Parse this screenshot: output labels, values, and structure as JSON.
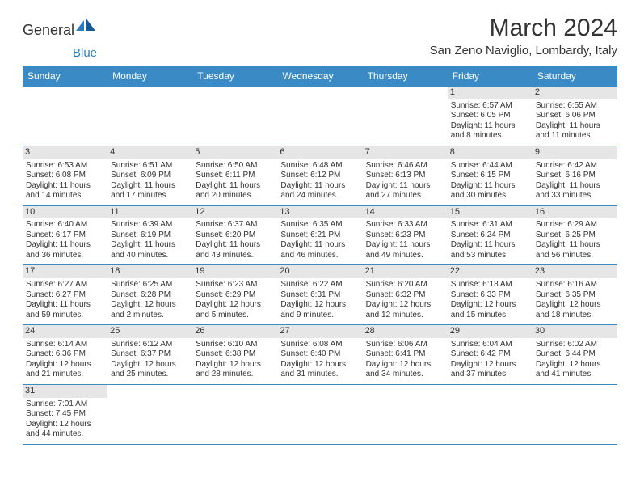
{
  "brand": {
    "name_part1": "General",
    "name_part2": "Blue"
  },
  "title": {
    "month": "March 2024",
    "location": "San Zeno Naviglio, Lombardy, Italy"
  },
  "colors": {
    "header_bg": "#3a8ac6",
    "rule": "#3a8ac6",
    "dayband": "#e6e6e6",
    "brand_blue": "#2b7bbf"
  },
  "weekdays": [
    "Sunday",
    "Monday",
    "Tuesday",
    "Wednesday",
    "Thursday",
    "Friday",
    "Saturday"
  ],
  "grid": {
    "rows": 6,
    "cols": 7,
    "first_weekday_index": 5,
    "days": [
      {
        "d": 1,
        "sunrise": "6:57 AM",
        "sunset": "6:05 PM",
        "daylight": "11 hours and 8 minutes."
      },
      {
        "d": 2,
        "sunrise": "6:55 AM",
        "sunset": "6:06 PM",
        "daylight": "11 hours and 11 minutes."
      },
      {
        "d": 3,
        "sunrise": "6:53 AM",
        "sunset": "6:08 PM",
        "daylight": "11 hours and 14 minutes."
      },
      {
        "d": 4,
        "sunrise": "6:51 AM",
        "sunset": "6:09 PM",
        "daylight": "11 hours and 17 minutes."
      },
      {
        "d": 5,
        "sunrise": "6:50 AM",
        "sunset": "6:11 PM",
        "daylight": "11 hours and 20 minutes."
      },
      {
        "d": 6,
        "sunrise": "6:48 AM",
        "sunset": "6:12 PM",
        "daylight": "11 hours and 24 minutes."
      },
      {
        "d": 7,
        "sunrise": "6:46 AM",
        "sunset": "6:13 PM",
        "daylight": "11 hours and 27 minutes."
      },
      {
        "d": 8,
        "sunrise": "6:44 AM",
        "sunset": "6:15 PM",
        "daylight": "11 hours and 30 minutes."
      },
      {
        "d": 9,
        "sunrise": "6:42 AM",
        "sunset": "6:16 PM",
        "daylight": "11 hours and 33 minutes."
      },
      {
        "d": 10,
        "sunrise": "6:40 AM",
        "sunset": "6:17 PM",
        "daylight": "11 hours and 36 minutes."
      },
      {
        "d": 11,
        "sunrise": "6:39 AM",
        "sunset": "6:19 PM",
        "daylight": "11 hours and 40 minutes."
      },
      {
        "d": 12,
        "sunrise": "6:37 AM",
        "sunset": "6:20 PM",
        "daylight": "11 hours and 43 minutes."
      },
      {
        "d": 13,
        "sunrise": "6:35 AM",
        "sunset": "6:21 PM",
        "daylight": "11 hours and 46 minutes."
      },
      {
        "d": 14,
        "sunrise": "6:33 AM",
        "sunset": "6:23 PM",
        "daylight": "11 hours and 49 minutes."
      },
      {
        "d": 15,
        "sunrise": "6:31 AM",
        "sunset": "6:24 PM",
        "daylight": "11 hours and 53 minutes."
      },
      {
        "d": 16,
        "sunrise": "6:29 AM",
        "sunset": "6:25 PM",
        "daylight": "11 hours and 56 minutes."
      },
      {
        "d": 17,
        "sunrise": "6:27 AM",
        "sunset": "6:27 PM",
        "daylight": "11 hours and 59 minutes."
      },
      {
        "d": 18,
        "sunrise": "6:25 AM",
        "sunset": "6:28 PM",
        "daylight": "12 hours and 2 minutes."
      },
      {
        "d": 19,
        "sunrise": "6:23 AM",
        "sunset": "6:29 PM",
        "daylight": "12 hours and 5 minutes."
      },
      {
        "d": 20,
        "sunrise": "6:22 AM",
        "sunset": "6:31 PM",
        "daylight": "12 hours and 9 minutes."
      },
      {
        "d": 21,
        "sunrise": "6:20 AM",
        "sunset": "6:32 PM",
        "daylight": "12 hours and 12 minutes."
      },
      {
        "d": 22,
        "sunrise": "6:18 AM",
        "sunset": "6:33 PM",
        "daylight": "12 hours and 15 minutes."
      },
      {
        "d": 23,
        "sunrise": "6:16 AM",
        "sunset": "6:35 PM",
        "daylight": "12 hours and 18 minutes."
      },
      {
        "d": 24,
        "sunrise": "6:14 AM",
        "sunset": "6:36 PM",
        "daylight": "12 hours and 21 minutes."
      },
      {
        "d": 25,
        "sunrise": "6:12 AM",
        "sunset": "6:37 PM",
        "daylight": "12 hours and 25 minutes."
      },
      {
        "d": 26,
        "sunrise": "6:10 AM",
        "sunset": "6:38 PM",
        "daylight": "12 hours and 28 minutes."
      },
      {
        "d": 27,
        "sunrise": "6:08 AM",
        "sunset": "6:40 PM",
        "daylight": "12 hours and 31 minutes."
      },
      {
        "d": 28,
        "sunrise": "6:06 AM",
        "sunset": "6:41 PM",
        "daylight": "12 hours and 34 minutes."
      },
      {
        "d": 29,
        "sunrise": "6:04 AM",
        "sunset": "6:42 PM",
        "daylight": "12 hours and 37 minutes."
      },
      {
        "d": 30,
        "sunrise": "6:02 AM",
        "sunset": "6:44 PM",
        "daylight": "12 hours and 41 minutes."
      },
      {
        "d": 31,
        "sunrise": "7:01 AM",
        "sunset": "7:45 PM",
        "daylight": "12 hours and 44 minutes."
      }
    ]
  },
  "labels": {
    "sunrise": "Sunrise:",
    "sunset": "Sunset:",
    "daylight": "Daylight:"
  }
}
